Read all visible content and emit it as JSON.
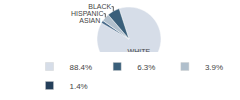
{
  "chart_data": {
    "type": "pie",
    "categories": [
      "WHITE",
      "ASIAN",
      "HISPANIC",
      "BLACK"
    ],
    "values": [
      88.4,
      1.4,
      3.9,
      6.3
    ],
    "colors": [
      "#d6dde8",
      "#4a6c8c",
      "#b0bfcc",
      "#3a5f7a"
    ],
    "legend": "bottom",
    "legend_entries": [
      {
        "value": 88.4,
        "label": "88.4%",
        "color": "#d6dde8"
      },
      {
        "value": 6.3,
        "label": "6.3%",
        "color": "#3a5f7a"
      },
      {
        "value": 3.9,
        "label": "3.9%",
        "color": "#b0bfcc"
      },
      {
        "value": 1.4,
        "label": "1.4%",
        "color": "#243f5a"
      }
    ]
  }
}
